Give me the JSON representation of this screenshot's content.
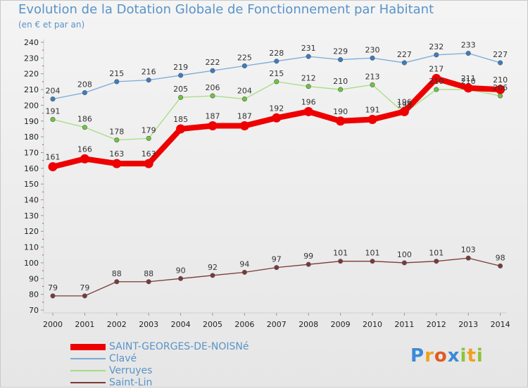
{
  "header": {
    "title": "Evolution de la Dotation Globale de Fonctionnement par Habitant",
    "subtitle": "(en € et par an)"
  },
  "logo": {
    "text": "Proxiti"
  },
  "chart_data": {
    "type": "line",
    "title": "Evolution de la Dotation Globale de Fonctionnement par Habitant",
    "subtitle": "(en € et par an)",
    "xlabel": "",
    "ylabel": "",
    "ylim": [
      70,
      240
    ],
    "ytick_step": 10,
    "grid": false,
    "legend_position": "bottom-left",
    "x": [
      "2000",
      "2001",
      "2002",
      "2003",
      "2004",
      "2005",
      "2006",
      "2007",
      "2008",
      "2009",
      "2010",
      "2011",
      "2012",
      "2013",
      "2014"
    ],
    "series": [
      {
        "name": "SAINT-GEORGES-DE-NOISNé",
        "color": "#ee0000",
        "marker": "#ee0000",
        "emphasis": true,
        "values": [
          161,
          166,
          163,
          163,
          185,
          187,
          187,
          192,
          196,
          190,
          191,
          196,
          217,
          211,
          210
        ]
      },
      {
        "name": "Clavé",
        "color": "#7aaad6",
        "marker": "#3a7ec4",
        "emphasis": false,
        "values": [
          204,
          208,
          215,
          216,
          219,
          222,
          225,
          228,
          231,
          229,
          230,
          227,
          232,
          233,
          227
        ]
      },
      {
        "name": "Verruyes",
        "color": "#a6dc80",
        "marker": "#6cc83c",
        "emphasis": false,
        "values": [
          191,
          186,
          178,
          179,
          205,
          206,
          204,
          215,
          212,
          210,
          213,
          195,
          210,
          210,
          206
        ]
      },
      {
        "name": "Saint-Lin",
        "color": "#7a3a3a",
        "marker": "#7a3a3a",
        "emphasis": false,
        "values": [
          79,
          79,
          88,
          88,
          90,
          92,
          94,
          97,
          99,
          101,
          101,
          100,
          101,
          103,
          98
        ]
      }
    ]
  }
}
